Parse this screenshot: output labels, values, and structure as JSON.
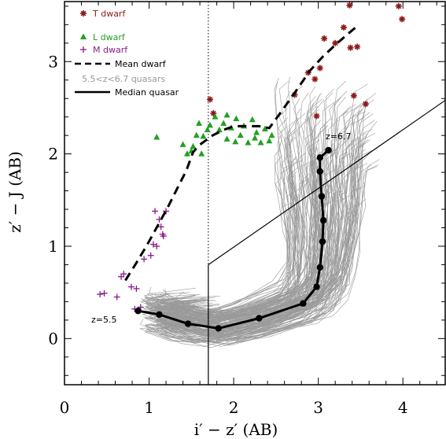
{
  "chart_data": {
    "type": "scatter",
    "xlabel": "i′ − z′ (AB)",
    "ylabel": "z′ − J (AB)",
    "xlim": [
      0,
      4.5
    ],
    "ylim": [
      -0.5,
      3.65
    ],
    "x_ticks": [
      "0",
      "1",
      "2",
      "3",
      "4"
    ],
    "y_ticks": [
      "0",
      "1",
      "2",
      "3"
    ],
    "legend": {
      "position": "top-left",
      "entries": [
        {
          "label": "T dwarf",
          "color": "#8b1a1a",
          "marker": "asterisk"
        },
        {
          "label": "L dwarf",
          "color": "#22a022",
          "marker": "triangle"
        },
        {
          "label": "M dwarf",
          "color": "#8b1a8b",
          "marker": "plus"
        },
        {
          "label": "Mean dwarf",
          "color": "#000000",
          "marker": "dashed-line"
        },
        {
          "label": "5.5<z<6.7 quasars",
          "color": "#999999",
          "marker": "none"
        },
        {
          "label": "Median quasar",
          "color": "#000000",
          "marker": "solid-line"
        }
      ]
    },
    "annotations": {
      "z_low": "z=5.5",
      "z_high": "z=6.7"
    },
    "series": [
      {
        "name": "T dwarf",
        "x": [
          1.72,
          1.76,
          2.96,
          2.72,
          2.88,
          3.02,
          3.07,
          3.2,
          3.3,
          3.38,
          3.42,
          3.46,
          3.56,
          3.37,
          3.95,
          3.99,
          2.98
        ],
        "y": [
          2.59,
          2.44,
          2.81,
          2.64,
          2.88,
          2.93,
          3.25,
          3.2,
          3.37,
          3.15,
          2.63,
          3.16,
          2.54,
          3.61,
          3.6,
          3.46,
          2.41
        ]
      },
      {
        "name": "L dwarf",
        "x": [
          1.09,
          1.4,
          1.45,
          1.52,
          1.56,
          1.59,
          1.64,
          1.69,
          1.72,
          1.78,
          1.83,
          1.88,
          1.92,
          1.97,
          2.03,
          2.08,
          2.12,
          2.17,
          2.22,
          2.27,
          2.32,
          2.37,
          2.42,
          2.45,
          1.62,
          1.5,
          1.92,
          2.02,
          2.25
        ],
        "y": [
          2.18,
          2.1,
          2.0,
          2.08,
          2.2,
          2.33,
          2.19,
          2.26,
          2.31,
          2.4,
          2.26,
          2.33,
          2.16,
          2.28,
          2.38,
          2.2,
          2.3,
          2.12,
          2.37,
          2.23,
          2.12,
          2.27,
          2.14,
          2.2,
          2.0,
          2.03,
          2.42,
          2.13,
          2.17
        ]
      },
      {
        "name": "M dwarf",
        "x": [
          0.42,
          0.47,
          0.62,
          0.67,
          0.7,
          0.79,
          0.83,
          0.85,
          0.9,
          0.94,
          1.02,
          1.05,
          1.09,
          1.12,
          1.16,
          1.2,
          1.14,
          1.07,
          1.17
        ],
        "y": [
          0.48,
          0.49,
          0.45,
          0.67,
          0.7,
          0.56,
          0.32,
          0.54,
          0.34,
          0.86,
          0.9,
          1.02,
          1.0,
          1.29,
          1.13,
          1.38,
          1.21,
          1.38,
          1.11
        ]
      },
      {
        "name": "Mean dwarf",
        "x": [
          0.72,
          0.85,
          0.98,
          1.1,
          1.22,
          1.33,
          1.44,
          1.52,
          1.6,
          1.75,
          1.88,
          2.0,
          2.15,
          2.3,
          2.42,
          2.58,
          2.75,
          2.9,
          3.05,
          3.2,
          3.35,
          3.48
        ],
        "y": [
          0.63,
          0.82,
          1.02,
          1.22,
          1.42,
          1.62,
          1.82,
          2.02,
          2.1,
          2.2,
          2.26,
          2.3,
          2.3,
          2.3,
          2.28,
          2.48,
          2.7,
          2.9,
          3.05,
          3.18,
          3.3,
          3.4
        ]
      },
      {
        "name": "Median quasar",
        "x": [
          0.87,
          1.12,
          1.46,
          1.82,
          2.3,
          2.82,
          2.98,
          3.02,
          3.05,
          3.06,
          3.04,
          3.02,
          3.02,
          3.12
        ],
        "y": [
          0.3,
          0.26,
          0.16,
          0.11,
          0.22,
          0.38,
          0.56,
          0.77,
          1.05,
          1.28,
          1.54,
          1.81,
          1.96,
          2.04
        ]
      }
    ]
  }
}
